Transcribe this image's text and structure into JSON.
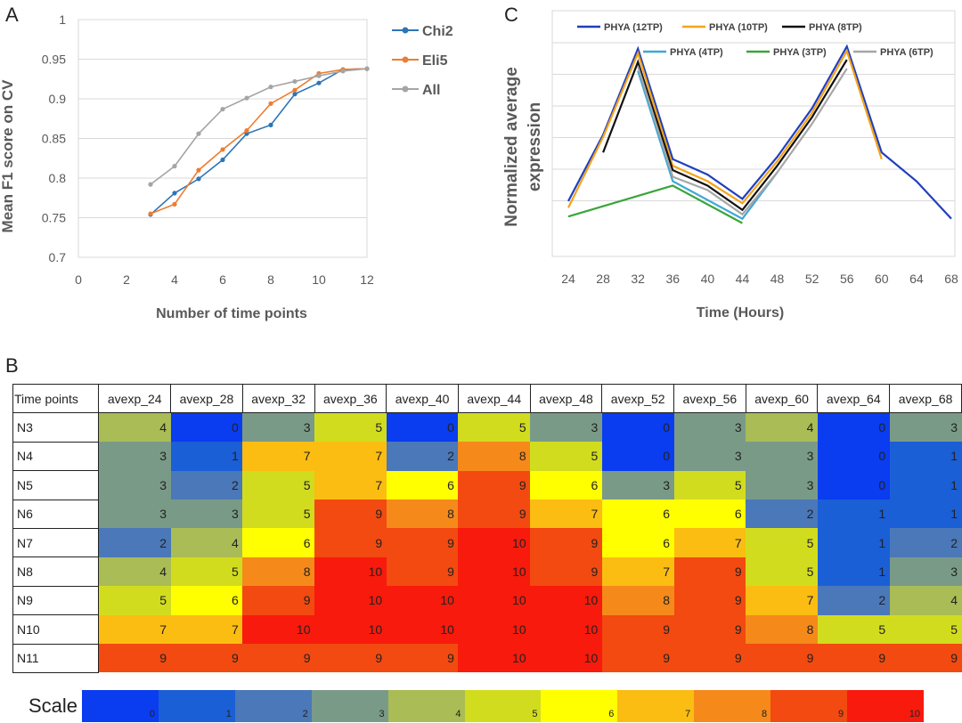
{
  "panels": {
    "a": "A",
    "b": "B",
    "c": "C"
  },
  "chart_data": [
    {
      "type": "line",
      "panel": "A",
      "xlabel": "Number of time points",
      "ylabel": "Mean F1 score on CV",
      "xlim": [
        0,
        12
      ],
      "ylim": [
        0.7,
        1
      ],
      "xticks": [
        "0",
        "2",
        "4",
        "6",
        "8",
        "10",
        "12"
      ],
      "yticks": [
        "0.7",
        "0.75",
        "0.8",
        "0.85",
        "0.9",
        "0.95",
        "1"
      ],
      "grid": "horizontal",
      "legend_position": "right",
      "series": [
        {
          "name": "Chi2",
          "color": "#2e75b6",
          "x": [
            3,
            4,
            5,
            6,
            7,
            8,
            9,
            10,
            11,
            12
          ],
          "y": [
            0.754,
            0.781,
            0.799,
            0.823,
            0.856,
            0.867,
            0.906,
            0.92,
            0.937,
            0.938
          ]
        },
        {
          "name": "Eli5",
          "color": "#ed7d31",
          "x": [
            3,
            4,
            5,
            6,
            7,
            8,
            9,
            10,
            11,
            12
          ],
          "y": [
            0.755,
            0.767,
            0.81,
            0.836,
            0.86,
            0.894,
            0.911,
            0.932,
            0.937,
            0.938
          ]
        },
        {
          "name": "All",
          "color": "#a5a5a5",
          "x": [
            3,
            4,
            5,
            6,
            7,
            8,
            9,
            10,
            11,
            12
          ],
          "y": [
            0.792,
            0.815,
            0.856,
            0.887,
            0.901,
            0.915,
            0.922,
            0.929,
            0.935,
            0.938
          ]
        }
      ]
    },
    {
      "type": "line",
      "panel": "C",
      "xlabel": "Time (Hours)",
      "ylabel_line1": "Normalized average",
      "ylabel_line2": "expression",
      "xticks": [
        "24",
        "28",
        "32",
        "36",
        "40",
        "44",
        "48",
        "52",
        "56",
        "60",
        "64",
        "68"
      ],
      "ylim": [
        0,
        10
      ],
      "grid": "horizontal",
      "legend_position": "top",
      "series": [
        {
          "name": "PHYA (12TP)",
          "color": "#1f3fbf",
          "x": [
            24,
            28,
            32,
            36,
            40,
            44,
            48,
            52,
            56,
            60,
            64,
            68
          ],
          "y": [
            1.7,
            4.7,
            8.6,
            3.6,
            2.9,
            1.8,
            3.7,
            5.9,
            8.7,
            3.9,
            2.6,
            0.9
          ]
        },
        {
          "name": "PHYA (10TP)",
          "color": "#f5a31a",
          "x": [
            24,
            28,
            32,
            36,
            40,
            44,
            48,
            52,
            56,
            60
          ],
          "y": [
            1.4,
            4.6,
            8.4,
            3.3,
            2.6,
            1.6,
            3.5,
            5.7,
            8.5,
            3.6
          ]
        },
        {
          "name": "PHYA (8TP)",
          "color": "#111111",
          "x": [
            28,
            32,
            36,
            40,
            44,
            48,
            52,
            56
          ],
          "y": [
            3.9,
            8.0,
            3.1,
            2.4,
            1.3,
            3.3,
            5.5,
            8.1
          ]
        },
        {
          "name": "PHYA (4TP)",
          "color": "#3ea7d8",
          "x": [
            32,
            36,
            44,
            48
          ],
          "y": [
            7.6,
            2.6,
            0.9,
            3.0
          ]
        },
        {
          "name": "PHYA (3TP)",
          "color": "#3aa53a",
          "x": [
            24,
            36,
            44
          ],
          "y": [
            1.0,
            2.4,
            0.7
          ]
        },
        {
          "name": "PHYA (6TP)",
          "color": "#a6a6a6",
          "x": [
            32,
            36,
            40,
            44,
            48,
            52,
            56
          ],
          "y": [
            7.8,
            2.8,
            2.2,
            1.1,
            3.0,
            5.2,
            7.7
          ]
        }
      ]
    },
    {
      "type": "heatmap",
      "panel": "B",
      "corner_label": "Time points",
      "columns": [
        "avexp_24",
        "avexp_28",
        "avexp_32",
        "avexp_36",
        "avexp_40",
        "avexp_44",
        "avexp_48",
        "avexp_52",
        "avexp_56",
        "avexp_60",
        "avexp_64",
        "avexp_68"
      ],
      "rows": [
        "N3",
        "N4",
        "N5",
        "N6",
        "N7",
        "N8",
        "N9",
        "N10",
        "N11"
      ],
      "values": [
        [
          4,
          0,
          3,
          5,
          0,
          5,
          3,
          0,
          3,
          4,
          0,
          3
        ],
        [
          3,
          1,
          7,
          7,
          2,
          8,
          5,
          0,
          3,
          3,
          0,
          1
        ],
        [
          3,
          2,
          5,
          7,
          6,
          9,
          6,
          3,
          5,
          3,
          0,
          1
        ],
        [
          3,
          3,
          5,
          9,
          8,
          9,
          7,
          6,
          6,
          2,
          1,
          1
        ],
        [
          2,
          4,
          6,
          9,
          9,
          10,
          9,
          6,
          7,
          5,
          1,
          2
        ],
        [
          4,
          5,
          8,
          10,
          9,
          10,
          9,
          7,
          9,
          5,
          1,
          3
        ],
        [
          5,
          6,
          9,
          10,
          10,
          10,
          10,
          8,
          9,
          7,
          2,
          4
        ],
        [
          7,
          7,
          10,
          10,
          10,
          10,
          10,
          9,
          9,
          8,
          5,
          5
        ],
        [
          9,
          9,
          9,
          9,
          9,
          10,
          10,
          9,
          9,
          9,
          9,
          9
        ]
      ],
      "scale_title": "Scale",
      "scale_labels": [
        "0",
        "1",
        "2",
        "3",
        "4",
        "5",
        "6",
        "7",
        "8",
        "9",
        "10"
      ],
      "scale_colors": [
        "#0a3cf0",
        "#1a5fd6",
        "#4a78b8",
        "#7a9a88",
        "#a9bc55",
        "#d2dc1e",
        "#ffff00",
        "#fbbd12",
        "#f58a1a",
        "#f24a10",
        "#f81a0c"
      ]
    }
  ]
}
